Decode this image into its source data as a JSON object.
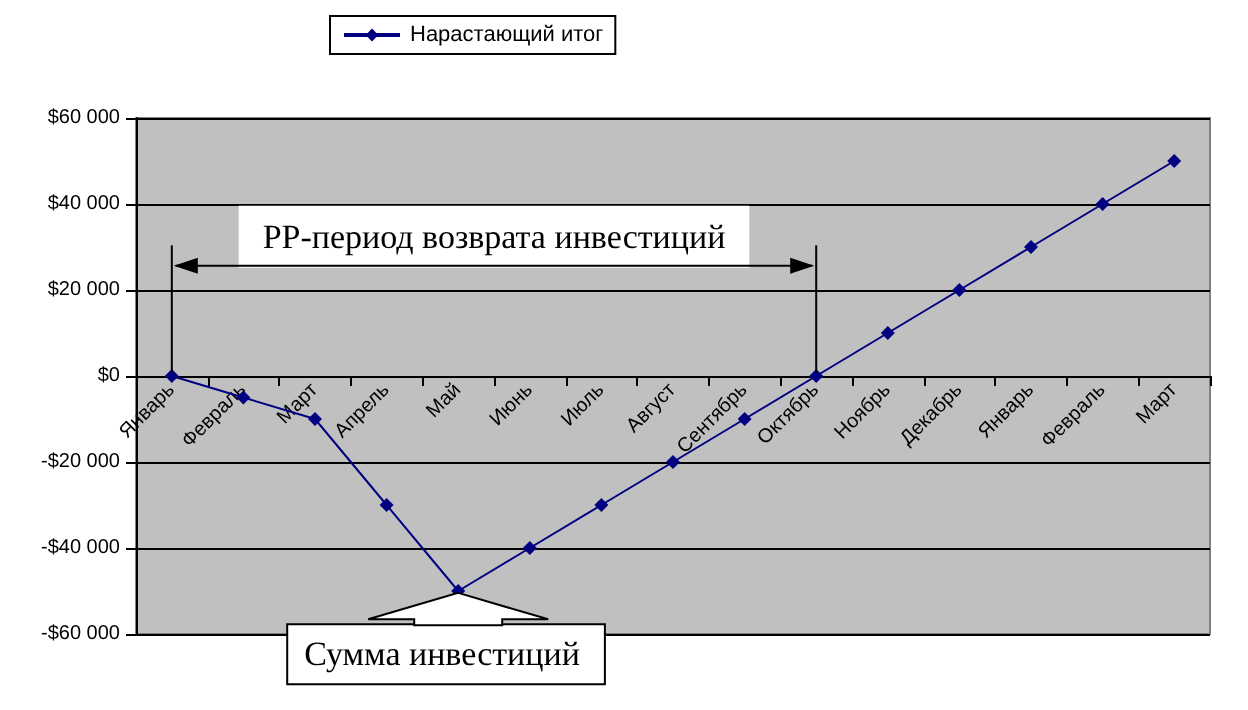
{
  "chart_data": {
    "type": "line",
    "categories": [
      "Январь",
      "Февраль",
      "Март",
      "Апрель",
      "Май",
      "Июнь",
      "Июль",
      "Август",
      "Сентябрь",
      "Октябрь",
      "Ноябрь",
      "Декабрь",
      "Январь",
      "Февраль",
      "Март"
    ],
    "series": [
      {
        "name": "Нарастающий итог",
        "color": "#000080",
        "values": [
          0,
          -5000,
          -10000,
          -30000,
          -50000,
          -40000,
          -30000,
          -20000,
          -10000,
          0,
          10000,
          20000,
          30000,
          40000,
          50000
        ]
      }
    ],
    "ylim": [
      -60000,
      60000
    ],
    "yticks": [
      {
        "value": -60000,
        "label": "-$60 000"
      },
      {
        "value": -40000,
        "label": "-$40 000"
      },
      {
        "value": -20000,
        "label": "-$20 000"
      },
      {
        "value": 0,
        "label": "$0"
      },
      {
        "value": 20000,
        "label": "$20 000"
      },
      {
        "value": 40000,
        "label": "$40 000"
      },
      {
        "value": 60000,
        "label": "$60 000"
      }
    ],
    "grid": "y",
    "legend": "top",
    "marker": "diamond",
    "line_style": "solid",
    "annotations": [
      "PP-период возврата инвестиций",
      {
        "text": "Сумма инвестиций",
        "x": "Май",
        "y": -50000
      }
    ]
  }
}
